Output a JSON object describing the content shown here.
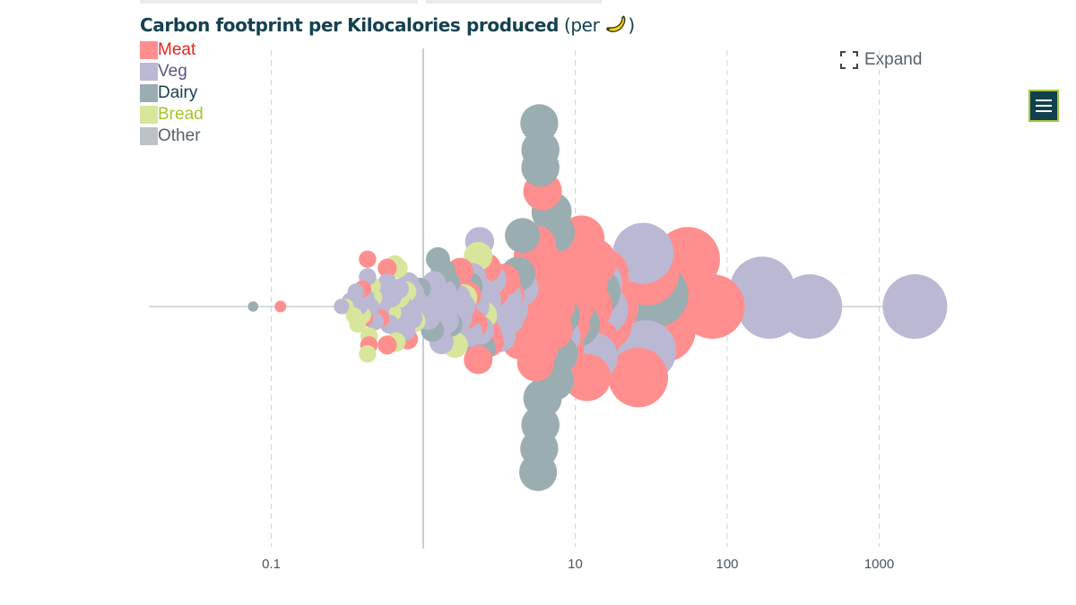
{
  "title": {
    "main": "Carbon footprint per Kilocalories produced",
    "unit_prefix": "(per ",
    "unit_emoji": "🍌",
    "unit_suffix": ")"
  },
  "legend": [
    {
      "label": "Meat",
      "color": "#ff8e8e",
      "text_color": "#e3271e"
    },
    {
      "label": "Veg",
      "color": "#bbb8d4",
      "text_color": "#5b567f"
    },
    {
      "label": "Dairy",
      "color": "#9aadb1",
      "text_color": "#15414f"
    },
    {
      "label": "Bread",
      "color": "#d7e69a",
      "text_color": "#a3c42b"
    },
    {
      "label": "Other",
      "color": "#bcc3c6",
      "text_color": "#55616b"
    }
  ],
  "expand_label": "Expand",
  "menu_icon": "hamburger-icon",
  "chart_data": {
    "type": "scatter",
    "subtype": "beeswarm",
    "title": "Carbon footprint per Kilocalories produced",
    "xscale": "log",
    "xlim": [
      0.02,
      2000
    ],
    "xticks": [
      0.1,
      10,
      100,
      1000
    ],
    "xtick_labels": [
      "0.1",
      "10",
      "100",
      "1000"
    ],
    "gridlines": [
      0.1,
      10,
      100,
      1000
    ],
    "reference_line": 1,
    "grid": true,
    "legend_placement": "top-left",
    "size_encodes": "footprint",
    "points": [
      {
        "category": "Dairy",
        "x": 0.076,
        "y": 0.0
      },
      {
        "category": "Meat",
        "x": 0.115,
        "y": 0.0
      },
      {
        "category": "Veg",
        "x": 0.29,
        "y": 0.0
      },
      {
        "category": "Bread",
        "x": 0.31,
        "y": 0.0
      },
      {
        "category": "Veg",
        "x": 0.33,
        "y": 0.2
      },
      {
        "category": "Bread",
        "x": 0.35,
        "y": -0.3
      },
      {
        "category": "Veg",
        "x": 0.36,
        "y": 0.5
      },
      {
        "category": "Bread",
        "x": 0.37,
        "y": -0.6
      },
      {
        "category": "Veg",
        "x": 0.38,
        "y": 0.0
      },
      {
        "category": "Meat",
        "x": 0.4,
        "y": 0.6
      },
      {
        "category": "Bread",
        "x": 0.4,
        "y": -0.3
      },
      {
        "category": "Veg",
        "x": 0.42,
        "y": 0.3
      },
      {
        "category": "Meat",
        "x": 0.41,
        "y": -0.4
      },
      {
        "category": "Veg",
        "x": 0.43,
        "y": 1.0
      },
      {
        "category": "Meat",
        "x": 0.43,
        "y": 1.6
      },
      {
        "category": "Bread",
        "x": 0.44,
        "y": -1.0
      },
      {
        "category": "Meat",
        "x": 0.44,
        "y": -1.3
      },
      {
        "category": "Veg",
        "x": 0.45,
        "y": 0.0
      },
      {
        "category": "Bread",
        "x": 0.46,
        "y": 0.7
      },
      {
        "category": "Bread",
        "x": 0.43,
        "y": -1.6
      },
      {
        "category": "Veg",
        "x": 0.48,
        "y": -0.5
      },
      {
        "category": "Bread",
        "x": 0.47,
        "y": 0.3
      },
      {
        "category": "Veg",
        "x": 0.5,
        "y": 0.5
      },
      {
        "category": "Veg",
        "x": 0.52,
        "y": -0.2
      },
      {
        "category": "Meat",
        "x": 0.52,
        "y": -0.4
      },
      {
        "category": "Veg",
        "x": 0.54,
        "y": 0.1
      },
      {
        "category": "Meat",
        "x": 0.58,
        "y": 1.3
      },
      {
        "category": "Veg",
        "x": 0.58,
        "y": 0.8
      },
      {
        "category": "Meat",
        "x": 0.58,
        "y": -1.3
      },
      {
        "category": "Veg",
        "x": 0.6,
        "y": -0.6
      },
      {
        "category": "Bread",
        "x": 0.62,
        "y": -0.2
      },
      {
        "category": "Veg",
        "x": 0.62,
        "y": 0.3
      },
      {
        "category": "Bread",
        "x": 0.65,
        "y": 1.4
      },
      {
        "category": "Bread",
        "x": 0.66,
        "y": -1.2
      },
      {
        "category": "Bread",
        "x": 0.68,
        "y": 1.3
      },
      {
        "category": "Veg",
        "x": 0.68,
        "y": -0.7
      },
      {
        "category": "Veg",
        "x": 0.69,
        "y": 0.6
      },
      {
        "category": "Bread",
        "x": 0.7,
        "y": 0.3
      },
      {
        "category": "Veg",
        "x": 0.72,
        "y": -0.3
      },
      {
        "category": "Veg",
        "x": 0.74,
        "y": 0.0
      },
      {
        "category": "Veg",
        "x": 0.76,
        "y": -0.8
      },
      {
        "category": "Bread",
        "x": 0.77,
        "y": 0.5
      },
      {
        "category": "Meat",
        "x": 0.79,
        "y": -1.1
      },
      {
        "category": "Veg",
        "x": 0.8,
        "y": 0.8
      },
      {
        "category": "Veg",
        "x": 0.82,
        "y": 0.0
      },
      {
        "category": "Veg",
        "x": 0.84,
        "y": -0.4
      },
      {
        "category": "Veg",
        "x": 0.86,
        "y": 0.5
      },
      {
        "category": "Bread",
        "x": 0.88,
        "y": -0.5
      },
      {
        "category": "Veg",
        "x": 0.9,
        "y": 0.2
      },
      {
        "category": "Veg",
        "x": 0.93,
        "y": -0.2
      },
      {
        "category": "Dairy",
        "x": 0.95,
        "y": 0.6
      },
      {
        "category": "Veg",
        "x": 1.05,
        "y": 0.4
      },
      {
        "category": "Veg",
        "x": 1.08,
        "y": -0.4
      },
      {
        "category": "Veg",
        "x": 1.12,
        "y": 0.0
      },
      {
        "category": "Dairy",
        "x": 1.15,
        "y": -0.8
      },
      {
        "category": "Veg",
        "x": 1.18,
        "y": 0.8
      },
      {
        "category": "Veg",
        "x": 1.2,
        "y": -0.2
      },
      {
        "category": "Dairy",
        "x": 1.25,
        "y": 1.6
      },
      {
        "category": "Veg",
        "x": 1.28,
        "y": 0.2
      },
      {
        "category": "Veg",
        "x": 1.32,
        "y": -1.2
      },
      {
        "category": "Dairy",
        "x": 1.35,
        "y": 1.2
      },
      {
        "category": "Veg",
        "x": 1.38,
        "y": 0.5
      },
      {
        "category": "Veg",
        "x": 1.42,
        "y": -0.5
      },
      {
        "category": "Dairy",
        "x": 1.45,
        "y": 0.8
      },
      {
        "category": "Veg",
        "x": 1.48,
        "y": 0.1
      },
      {
        "category": "Dairy",
        "x": 1.5,
        "y": -0.6
      },
      {
        "category": "Veg",
        "x": 1.55,
        "y": 0.4
      },
      {
        "category": "Veg",
        "x": 1.6,
        "y": -0.2
      },
      {
        "category": "Bread",
        "x": 1.62,
        "y": -1.3
      },
      {
        "category": "Veg",
        "x": 1.68,
        "y": 0.3
      },
      {
        "category": "Veg",
        "x": 1.72,
        "y": -0.4
      },
      {
        "category": "Meat",
        "x": 1.75,
        "y": 1.2
      },
      {
        "category": "Veg",
        "x": 1.8,
        "y": 0.0
      },
      {
        "category": "Bread",
        "x": 1.85,
        "y": 0.3
      },
      {
        "category": "Meat",
        "x": 1.9,
        "y": -0.3
      },
      {
        "category": "Meat",
        "x": 1.95,
        "y": 0.4
      },
      {
        "category": "Veg",
        "x": 2.0,
        "y": -0.9
      },
      {
        "category": "Dairy",
        "x": 2.0,
        "y": 0.7
      },
      {
        "category": "Veg",
        "x": 2.1,
        "y": 1.0
      },
      {
        "category": "Meat",
        "x": 2.15,
        "y": -0.6
      },
      {
        "category": "Veg",
        "x": 2.2,
        "y": 0.0
      },
      {
        "category": "Bread",
        "x": 2.3,
        "y": 1.7
      },
      {
        "category": "Veg",
        "x": 2.35,
        "y": 2.2
      },
      {
        "category": "Veg",
        "x": 2.35,
        "y": -0.8
      },
      {
        "category": "Meat",
        "x": 2.3,
        "y": -1.8
      },
      {
        "category": "Dairy",
        "x": 2.4,
        "y": -1.4
      },
      {
        "category": "Veg",
        "x": 2.4,
        "y": 0.5
      },
      {
        "category": "Bread",
        "x": 2.45,
        "y": -0.3
      },
      {
        "category": "Meat",
        "x": 2.6,
        "y": 1.3
      },
      {
        "category": "Veg",
        "x": 2.6,
        "y": 0.2
      },
      {
        "category": "Meat",
        "x": 2.6,
        "y": -0.9
      },
      {
        "category": "Veg",
        "x": 2.7,
        "y": -0.3
      },
      {
        "category": "Meat",
        "x": 2.7,
        "y": -1.2
      },
      {
        "category": "Veg",
        "x": 2.8,
        "y": 0.9
      },
      {
        "category": "Meat",
        "x": 2.9,
        "y": 0.5
      },
      {
        "category": "Veg",
        "x": 3.0,
        "y": -0.6
      },
      {
        "category": "Veg",
        "x": 3.1,
        "y": 0.0
      },
      {
        "category": "Veg",
        "x": 3.2,
        "y": -1.0
      },
      {
        "category": "Meat",
        "x": 3.4,
        "y": 0.9
      },
      {
        "category": "Veg",
        "x": 3.5,
        "y": 0.3
      },
      {
        "category": "Veg",
        "x": 3.6,
        "y": -0.4
      },
      {
        "category": "Meat",
        "x": 3.6,
        "y": 0.4
      },
      {
        "category": "Veg",
        "x": 3.8,
        "y": -0.1
      },
      {
        "category": "Meat",
        "x": 3.9,
        "y": -0.5
      },
      {
        "category": "Dairy",
        "x": 4.2,
        "y": 1.1
      },
      {
        "category": "Meat",
        "x": 4.3,
        "y": -1.2
      },
      {
        "category": "Veg",
        "x": 4.4,
        "y": 0.6
      },
      {
        "category": "Dairy",
        "x": 4.5,
        "y": 2.4
      },
      {
        "category": "Meat",
        "x": 4.8,
        "y": 0.2
      },
      {
        "category": "Meat",
        "x": 5.2,
        "y": 1.7
      },
      {
        "category": "Meat",
        "x": 5.1,
        "y": -0.8
      },
      {
        "category": "Meat",
        "x": 5.4,
        "y": 0.6
      },
      {
        "category": "Meat",
        "x": 5.5,
        "y": -0.3
      },
      {
        "category": "Meat",
        "x": 5.6,
        "y": 2.1
      },
      {
        "category": "Meat",
        "x": 5.5,
        "y": -1.9
      },
      {
        "category": "Dairy",
        "x": 5.8,
        "y": 6.2
      },
      {
        "category": "Dairy",
        "x": 5.9,
        "y": 5.3
      },
      {
        "category": "Dairy",
        "x": 5.9,
        "y": 4.7
      },
      {
        "category": "Meat",
        "x": 6.1,
        "y": 3.9
      },
      {
        "category": "Dairy",
        "x": 6.1,
        "y": -3.1
      },
      {
        "category": "Dairy",
        "x": 5.9,
        "y": -4.0
      },
      {
        "category": "Dairy",
        "x": 5.8,
        "y": -4.8
      },
      {
        "category": "Dairy",
        "x": 5.7,
        "y": -5.6
      },
      {
        "category": "Meat",
        "x": 6.0,
        "y": 1.6
      },
      {
        "category": "Meat",
        "x": 5.8,
        "y": -1.4
      },
      {
        "category": "Meat",
        "x": 6.3,
        "y": 0.8
      },
      {
        "category": "Meat",
        "x": 6.4,
        "y": -0.8
      },
      {
        "category": "Meat",
        "x": 6.7,
        "y": 1.1
      },
      {
        "category": "Dairy",
        "x": 7.0,
        "y": 3.2
      },
      {
        "category": "Dairy",
        "x": 7.3,
        "y": 2.5
      },
      {
        "category": "Meat",
        "x": 7.3,
        "y": 0.0
      },
      {
        "category": "Meat",
        "x": 7.5,
        "y": 2.0
      },
      {
        "category": "Dairy",
        "x": 7.2,
        "y": -2.5
      },
      {
        "category": "Dairy",
        "x": 7.6,
        "y": -1.6
      },
      {
        "category": "Meat",
        "x": 7.1,
        "y": -0.8
      },
      {
        "category": "Meat",
        "x": 7.7,
        "y": 0.5
      },
      {
        "category": "Dairy",
        "x": 7.8,
        "y": -0.3
      },
      {
        "category": "Veg",
        "x": 7.9,
        "y": -1.0
      },
      {
        "category": "Meat",
        "x": 8.2,
        "y": 1.2
      },
      {
        "category": "Meat",
        "x": 8.3,
        "y": -1.4
      },
      {
        "category": "Meat",
        "x": 9.0,
        "y": -0.6
      },
      {
        "category": "Meat",
        "x": 9.5,
        "y": 0.0
      },
      {
        "category": "Meat",
        "x": 9.8,
        "y": 0.6
      },
      {
        "category": "Dairy",
        "x": 10.3,
        "y": -0.6
      },
      {
        "category": "Meat",
        "x": 11.0,
        "y": 2.3
      },
      {
        "category": "Meat",
        "x": 11.5,
        "y": 0.8
      },
      {
        "category": "Meat",
        "x": 12.0,
        "y": -2.4
      },
      {
        "category": "Meat",
        "x": 12.3,
        "y": 0.0
      },
      {
        "category": "Meat",
        "x": 13.0,
        "y": 1.5
      },
      {
        "category": "Veg",
        "x": 13.2,
        "y": -1.7
      },
      {
        "category": "Meat",
        "x": 13.5,
        "y": -1.2
      },
      {
        "category": "Dairy",
        "x": 13.7,
        "y": 0.5
      },
      {
        "category": "Veg",
        "x": 14.0,
        "y": 0.8
      },
      {
        "category": "Meat",
        "x": 15.3,
        "y": 1.1
      },
      {
        "category": "Meat",
        "x": 16.0,
        "y": -0.6
      },
      {
        "category": "Veg",
        "x": 15.2,
        "y": -0.1
      },
      {
        "category": "Meat",
        "x": 17.5,
        "y": 0.0
      },
      {
        "category": "Meat",
        "x": 26.0,
        "y": -2.4
      },
      {
        "category": "Veg",
        "x": 28.0,
        "y": 1.8
      },
      {
        "category": "Veg",
        "x": 29.0,
        "y": -1.5
      },
      {
        "category": "Meat",
        "x": 30.0,
        "y": 1.1
      },
      {
        "category": "Dairy",
        "x": 34.0,
        "y": 0.4
      },
      {
        "category": "Meat",
        "x": 38.0,
        "y": -0.8
      },
      {
        "category": "Meat",
        "x": 55.0,
        "y": 1.6
      },
      {
        "category": "Meat",
        "x": 80.0,
        "y": 0.0
      },
      {
        "category": "Veg",
        "x": 170.0,
        "y": 0.6
      },
      {
        "category": "Veg",
        "x": 190.0,
        "y": 0.0
      },
      {
        "category": "Veg",
        "x": 350.0,
        "y": 0.0
      },
      {
        "category": "Veg",
        "x": 1720.0,
        "y": 0.0
      }
    ]
  }
}
